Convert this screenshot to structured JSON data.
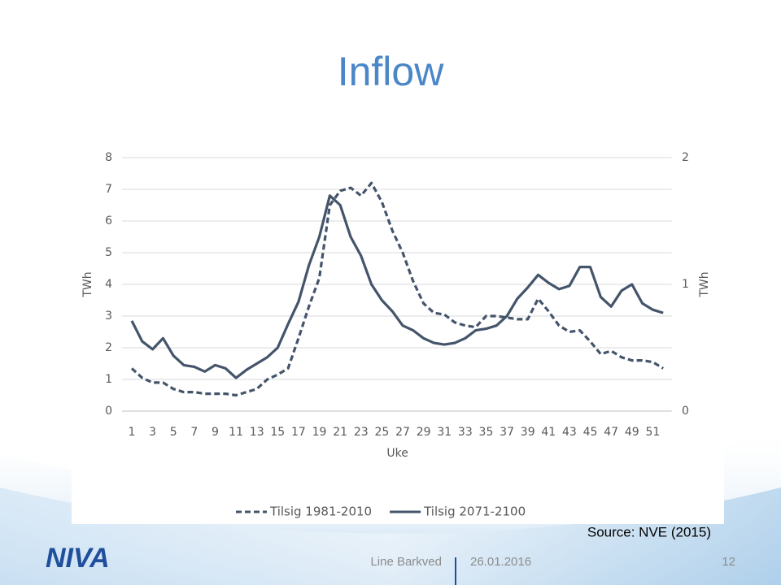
{
  "slide": {
    "title": "Inflow",
    "source": "Source: NVE (2015)",
    "logo": "NIVA",
    "author": "Line Barkved",
    "date": "26.01.2016",
    "page": "12"
  },
  "chart_data": {
    "type": "line",
    "x_label": "Uke",
    "y_label": "TWh",
    "y2_label": "TWh",
    "categories": [
      "1",
      null,
      "3",
      null,
      "5",
      null,
      "7",
      null,
      "9",
      null,
      "11",
      null,
      "13",
      null,
      "15",
      null,
      "17",
      null,
      "19",
      null,
      "21",
      null,
      "23",
      null,
      "25",
      null,
      "27",
      null,
      "29",
      null,
      "31",
      null,
      "33",
      null,
      "35",
      null,
      "37",
      null,
      "39",
      null,
      "41",
      null,
      "43",
      null,
      "45",
      null,
      "47",
      null,
      "49",
      null,
      "51",
      null
    ],
    "series": [
      {
        "name": "Tilsig 1981-2010",
        "color": "#44546a",
        "style": "dashed",
        "values": [
          1.35,
          1.05,
          0.9,
          0.9,
          0.7,
          0.6,
          0.6,
          0.55,
          0.55,
          0.55,
          0.5,
          0.6,
          0.7,
          1.0,
          1.15,
          1.35,
          2.3,
          3.3,
          4.2,
          6.5,
          6.95,
          7.05,
          6.8,
          7.2,
          6.6,
          5.7,
          5.0,
          4.1,
          3.4,
          3.1,
          3.05,
          2.8,
          2.7,
          2.65,
          3.0,
          3.0,
          2.95,
          2.9,
          2.9,
          3.55,
          3.15,
          2.7,
          2.5,
          2.55,
          2.2,
          1.8,
          1.9,
          1.7,
          1.6,
          1.6,
          1.55,
          1.35
        ]
      },
      {
        "name": "Tilsig 2071-2100",
        "color": "#44546a",
        "style": "solid",
        "values": [
          2.85,
          2.2,
          1.95,
          2.3,
          1.75,
          1.45,
          1.4,
          1.25,
          1.45,
          1.35,
          1.05,
          1.3,
          1.5,
          1.7,
          2.0,
          2.75,
          3.45,
          4.6,
          5.5,
          6.8,
          6.5,
          5.5,
          4.9,
          4.0,
          3.5,
          3.15,
          2.7,
          2.55,
          2.3,
          2.15,
          2.1,
          2.15,
          2.3,
          2.55,
          2.6,
          2.7,
          3.0,
          3.55,
          3.9,
          4.3,
          4.05,
          3.85,
          3.95,
          4.55,
          4.55,
          3.6,
          3.3,
          3.8,
          4.0,
          3.4,
          3.2,
          3.1
        ]
      }
    ],
    "ylim": [
      0,
      8
    ],
    "yticks": [
      0,
      1,
      2,
      3,
      4,
      5,
      6,
      7,
      8
    ],
    "y2lim": [
      0,
      2
    ],
    "y2ticks": [
      0,
      1,
      2
    ],
    "grid": true,
    "legend": "bottom"
  }
}
